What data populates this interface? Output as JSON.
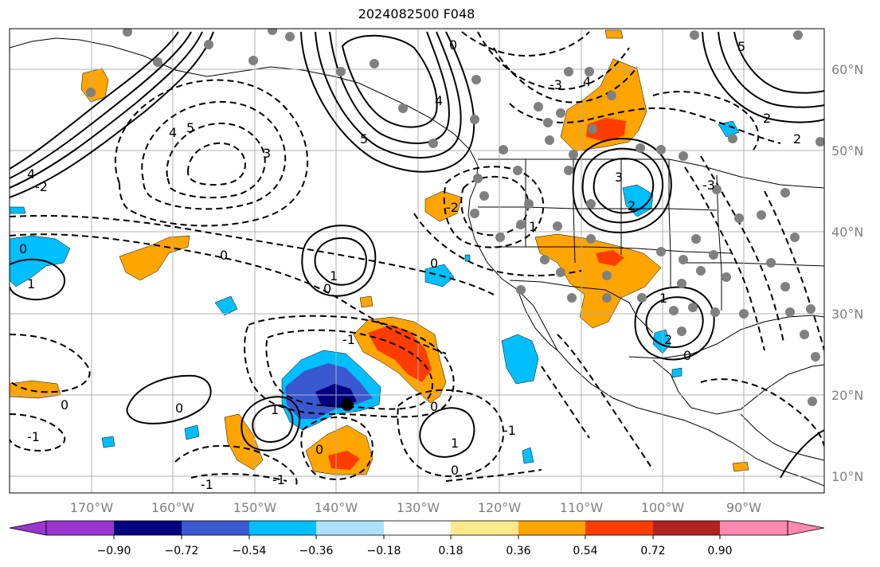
{
  "title": "2024082500 F048",
  "map": {
    "lon_labels": [
      "170°W",
      "160°W",
      "150°W",
      "140°W",
      "130°W",
      "120°W",
      "110°W",
      "100°W",
      "90°W"
    ],
    "lat_labels": [
      "60°N",
      "50°N",
      "40°N",
      "30°N",
      "20°N",
      "10°N"
    ],
    "contour_labels": [
      "0",
      "1",
      "2",
      "3",
      "4",
      "5",
      "-1",
      "-2",
      "-3"
    ]
  },
  "colorbar": {
    "tick_labels": [
      "−0.90",
      "−0.72",
      "−0.54",
      "−0.36",
      "−0.18",
      "0.18",
      "0.36",
      "0.54",
      "0.72",
      "0.90"
    ],
    "colors": [
      "#9a35d0",
      "#000080",
      "#3a58d0",
      "#00bfff",
      "#aee0ff",
      "#ffffff",
      "#ffe88a",
      "#ffa500",
      "#ff3c00",
      "#b22222",
      "#ff88b0"
    ]
  }
}
